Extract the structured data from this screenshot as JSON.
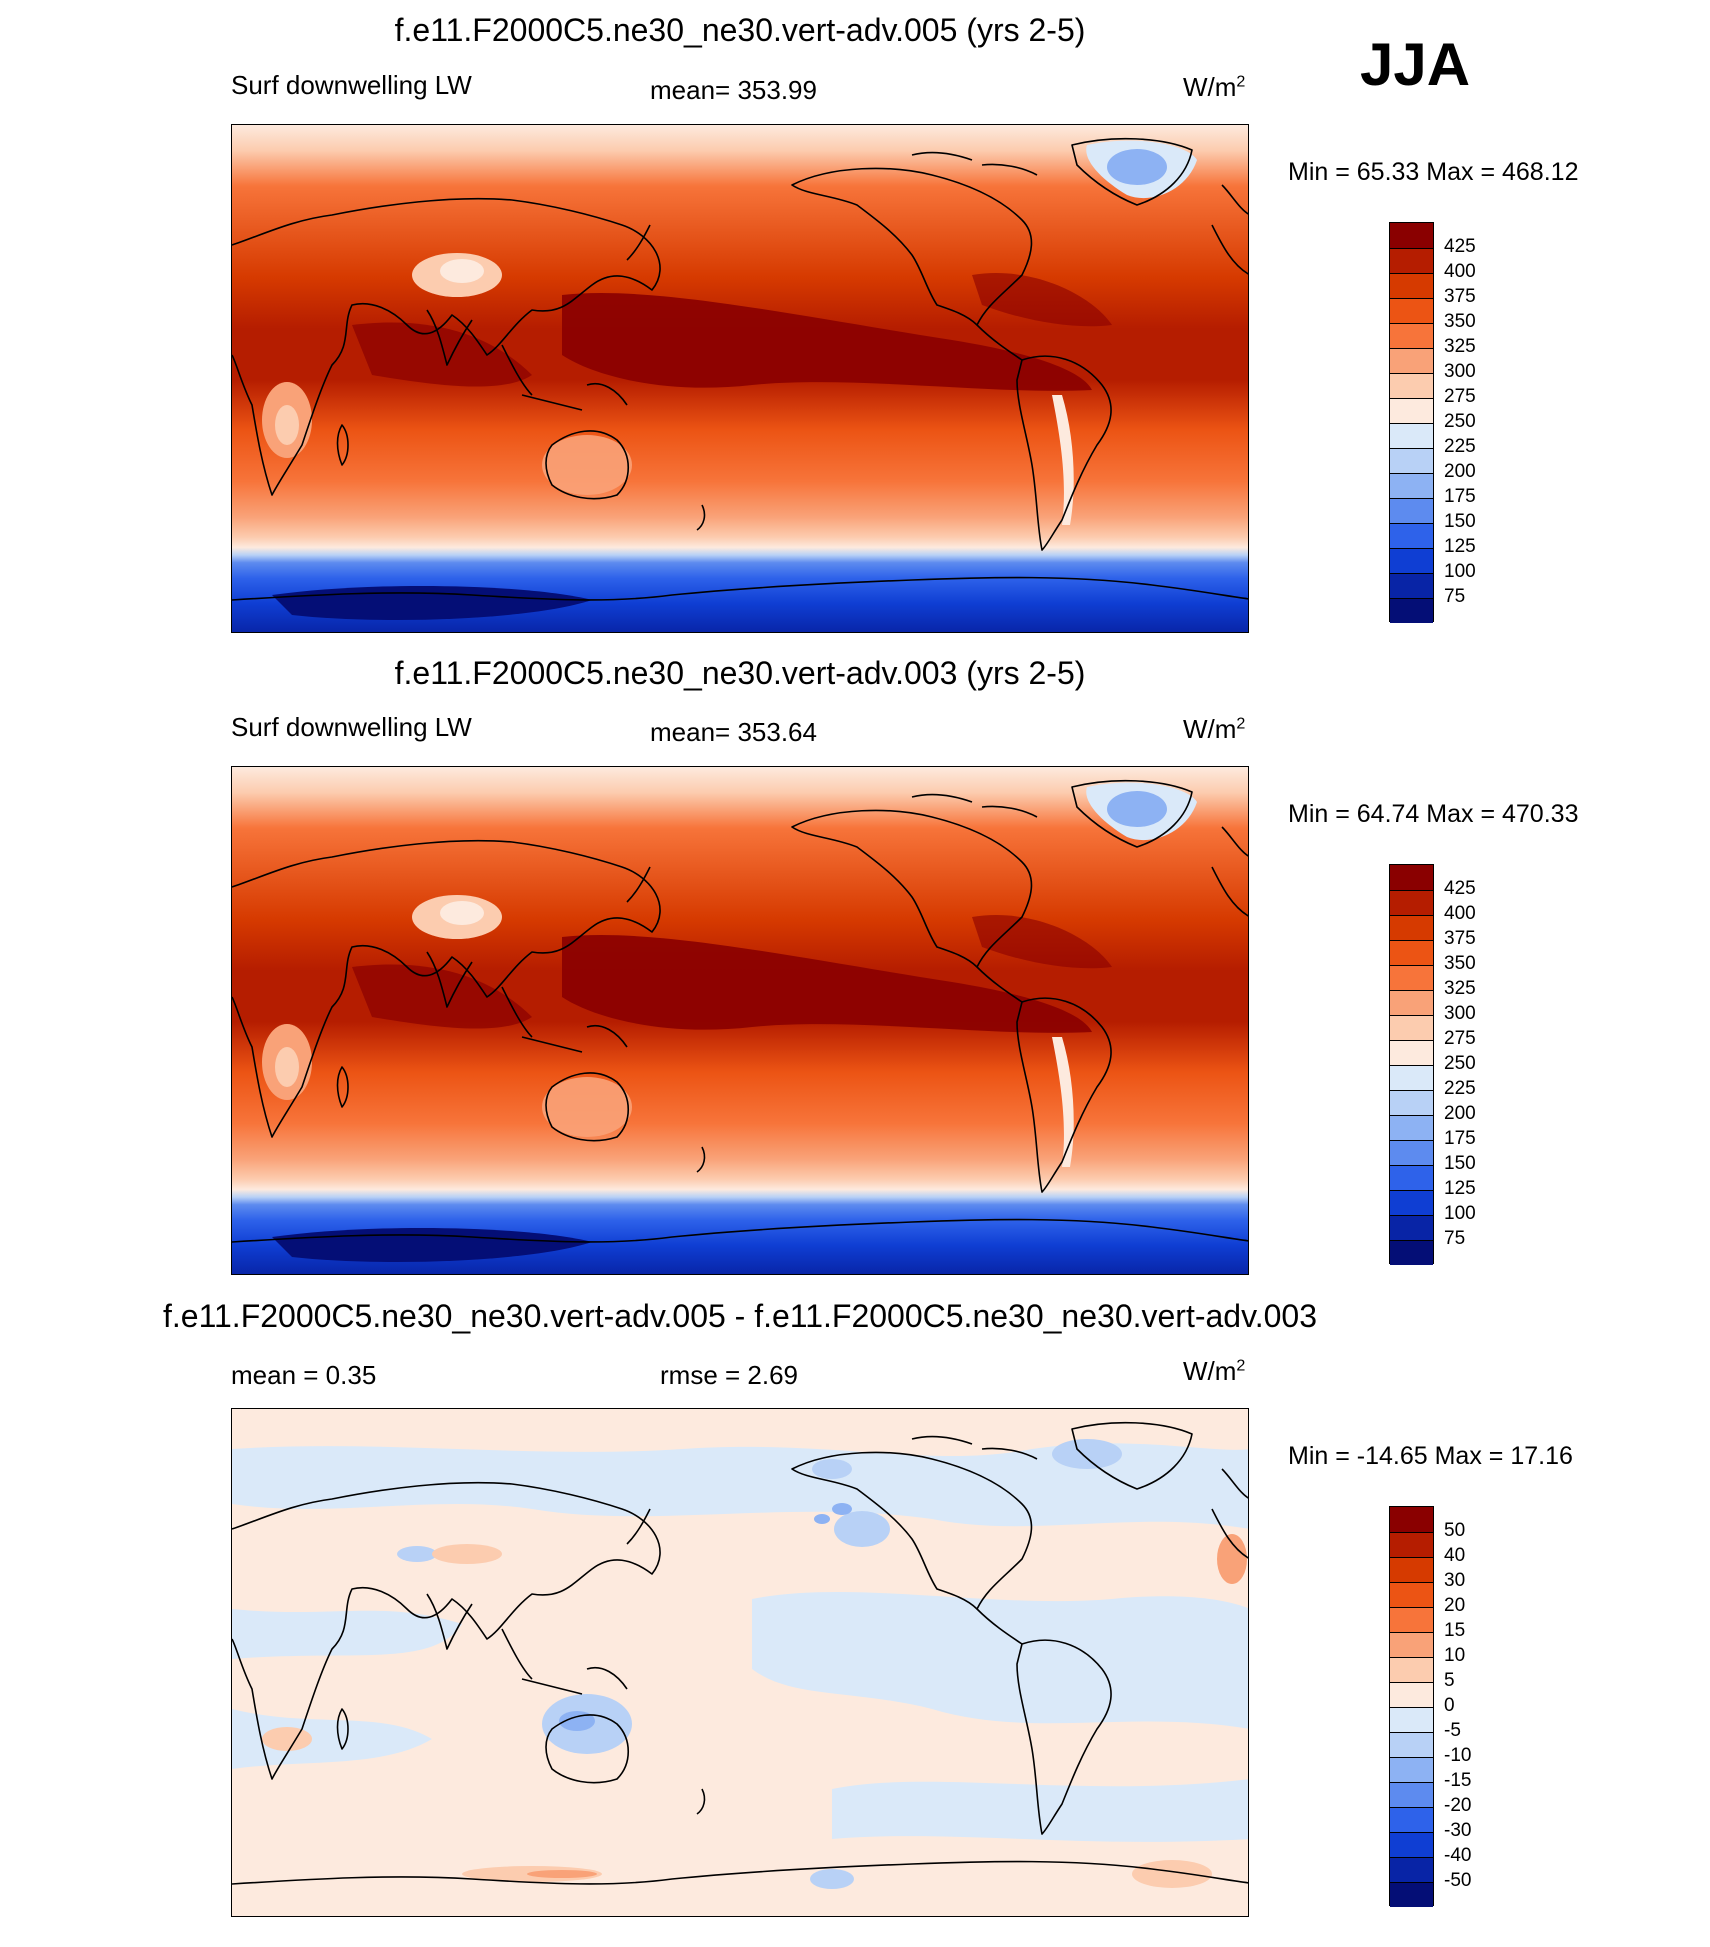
{
  "season_label": "JJA",
  "panels": [
    {
      "title": "f.e11.F2000C5.ne30_ne30.vert-adv.005 (yrs 2-5)",
      "left_label": "Surf downwelling LW",
      "center_label": "mean= 353.99",
      "units": "W/m",
      "units_exp": "2",
      "minmax": "Min =  65.33 Max = 468.12",
      "colorbar": {
        "labels": [
          "425",
          "400",
          "375",
          "350",
          "325",
          "300",
          "275",
          "250",
          "225",
          "200",
          "175",
          "150",
          "125",
          "100",
          "75"
        ],
        "colors": [
          "#8a0000",
          "#b51d00",
          "#d63a00",
          "#ec5414",
          "#f7743a",
          "#f9a278",
          "#fcccaf",
          "#fdeade",
          "#dae9f9",
          "#b8d1f6",
          "#8db2f3",
          "#5d8bef",
          "#2e62ea",
          "#0f3ed3",
          "#0824a6",
          "#040e76"
        ]
      }
    },
    {
      "title": "f.e11.F2000C5.ne30_ne30.vert-adv.003 (yrs 2-5)",
      "left_label": "Surf downwelling LW",
      "center_label": "mean= 353.64",
      "units": "W/m",
      "units_exp": "2",
      "minmax": "Min =  64.74 Max = 470.33",
      "colorbar": {
        "labels": [
          "425",
          "400",
          "375",
          "350",
          "325",
          "300",
          "275",
          "250",
          "225",
          "200",
          "175",
          "150",
          "125",
          "100",
          "75"
        ],
        "colors": [
          "#8a0000",
          "#b51d00",
          "#d63a00",
          "#ec5414",
          "#f7743a",
          "#f9a278",
          "#fcccaf",
          "#fdeade",
          "#dae9f9",
          "#b8d1f6",
          "#8db2f3",
          "#5d8bef",
          "#2e62ea",
          "#0f3ed3",
          "#0824a6",
          "#040e76"
        ]
      }
    },
    {
      "title": "f.e11.F2000C5.ne30_ne30.vert-adv.005 - f.e11.F2000C5.ne30_ne30.vert-adv.003",
      "left_label": "mean =   0.35",
      "center_label": "rmse =   2.69",
      "units": "W/m",
      "units_exp": "2",
      "minmax": "Min = -14.65 Max =  17.16",
      "colorbar": {
        "labels": [
          "50",
          "40",
          "30",
          "20",
          "15",
          "10",
          "5",
          "0",
          "-5",
          "-10",
          "-15",
          "-20",
          "-30",
          "-40",
          "-50"
        ],
        "colors": [
          "#8a0000",
          "#b51d00",
          "#d63a00",
          "#ec5414",
          "#f7743a",
          "#f9a278",
          "#fcccaf",
          "#fdeade",
          "#dae9f9",
          "#b8d1f6",
          "#8db2f3",
          "#5d8bef",
          "#2e62ea",
          "#0f3ed3",
          "#0824a6",
          "#040e76"
        ]
      }
    }
  ]
}
